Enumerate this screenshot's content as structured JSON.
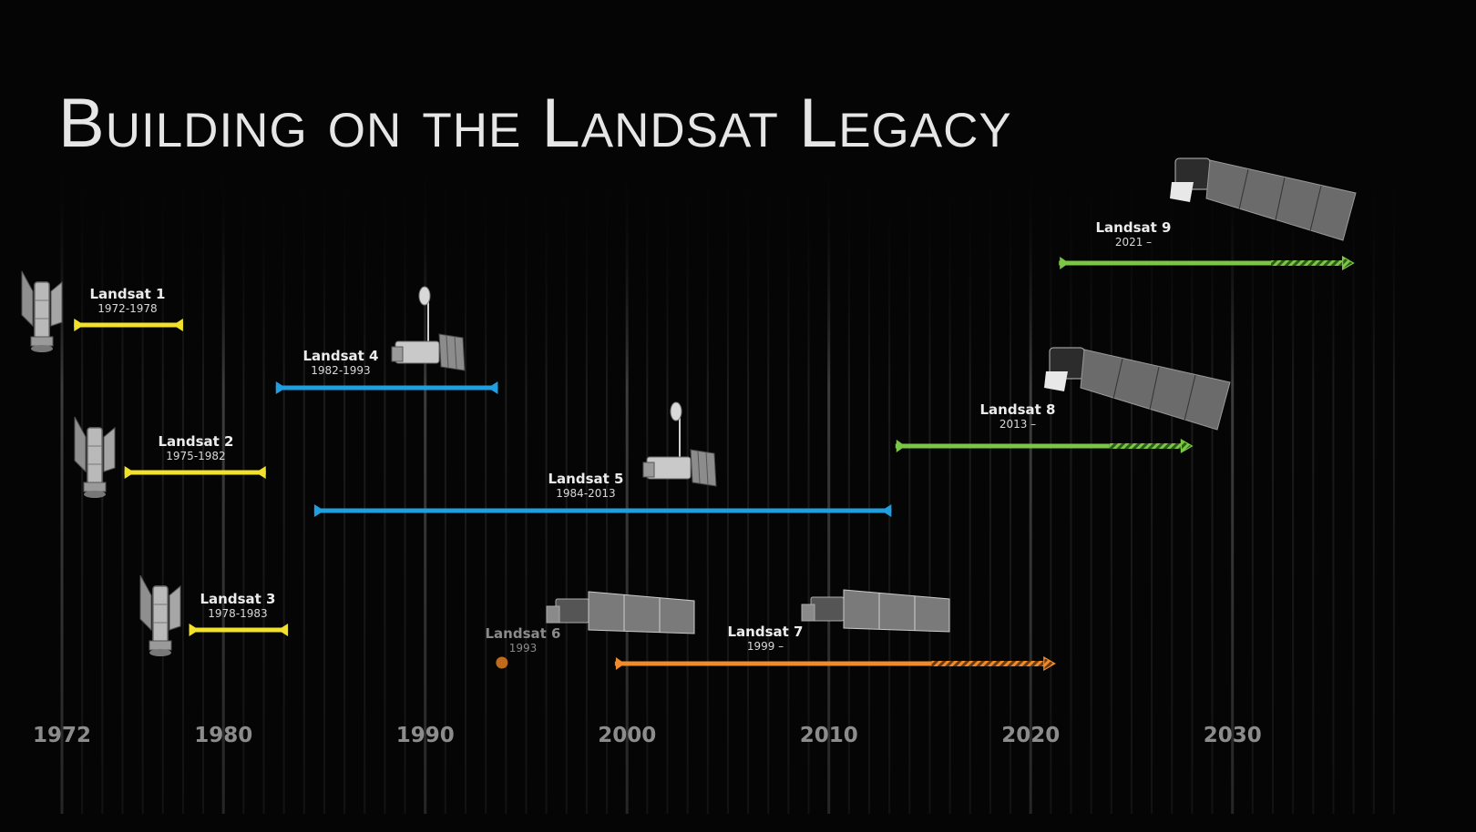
{
  "title": "Building on the Landsat Legacy",
  "axis_ticks": [
    "1972",
    "1980",
    "1990",
    "2000",
    "2010",
    "2020",
    "2030"
  ],
  "missions": [
    {
      "name": "Landsat 1",
      "years": "1972-1978",
      "start": 1972.6,
      "end": 1978.0,
      "color": "#f2e12b",
      "ongoing": false,
      "status": "complete"
    },
    {
      "name": "Landsat 2",
      "years": "1975-1982",
      "start": 1975.1,
      "end": 1982.1,
      "color": "#f2e12b",
      "ongoing": false,
      "status": "complete"
    },
    {
      "name": "Landsat 3",
      "years": "1978-1983",
      "start": 1978.3,
      "end": 1983.2,
      "color": "#f2e12b",
      "ongoing": false,
      "status": "complete"
    },
    {
      "name": "Landsat 4",
      "years": "1982-1993",
      "start": 1982.6,
      "end": 1993.6,
      "color": "#1f9fe0",
      "ongoing": false,
      "status": "complete"
    },
    {
      "name": "Landsat 5",
      "years": "1984-2013",
      "start": 1984.5,
      "end": 2013.1,
      "color": "#1f9fe0",
      "ongoing": false,
      "status": "complete"
    },
    {
      "name": "Landsat 6",
      "years": "1993",
      "start": 1993.8,
      "end": 1993.8,
      "color": "#c06a1c",
      "ongoing": false,
      "status": "failed"
    },
    {
      "name": "Landsat 7",
      "years": "1999 –",
      "start": 1999.4,
      "end": 2021.2,
      "color": "#f08a2a",
      "ongoing": true,
      "status": "active"
    },
    {
      "name": "Landsat 8",
      "years": "2013 –",
      "start": 2013.3,
      "end": 2028.0,
      "color": "#7bc644",
      "ongoing": true,
      "status": "active"
    },
    {
      "name": "Landsat 9",
      "years": "2021 –",
      "start": 2021.4,
      "end": 2036.0,
      "color": "#7bc644",
      "ongoing": true,
      "status": "active"
    }
  ],
  "colors": {
    "background": "#050505",
    "gridline": "#2a2a2a",
    "title": "#e6e6e6",
    "axis_text": "#8c8c8c"
  },
  "icons": [
    "satellite-gen1-icon",
    "satellite-gen2-icon",
    "satellite-gen3-icon"
  ]
}
